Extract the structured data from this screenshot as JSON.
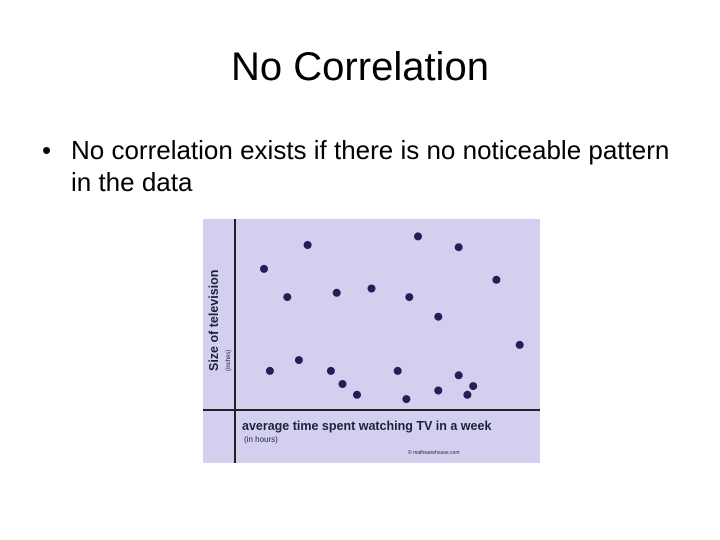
{
  "slide": {
    "title": "No Correlation",
    "bullet": "No correlation exists if there is no noticeable pattern in the data"
  },
  "chart_data": {
    "type": "scatter",
    "xlabel": "average time spent watching TV in a week",
    "xlabel_sub": "(in hours)",
    "ylabel": "Size of television",
    "ylabel_sub": "(inches)",
    "credit": "© mathwarehouse.com",
    "grid": false,
    "colors": {
      "background": "#d2d0ee",
      "point": "#2a1a55",
      "axis": "#222222"
    },
    "points": [
      {
        "x": 1.0,
        "y": 6.5
      },
      {
        "x": 1.2,
        "y": 1.8
      },
      {
        "x": 1.8,
        "y": 5.2
      },
      {
        "x": 2.2,
        "y": 2.3
      },
      {
        "x": 2.5,
        "y": 7.6
      },
      {
        "x": 3.3,
        "y": 1.8
      },
      {
        "x": 3.5,
        "y": 5.4
      },
      {
        "x": 3.7,
        "y": 1.2
      },
      {
        "x": 4.2,
        "y": 0.7
      },
      {
        "x": 4.7,
        "y": 5.6
      },
      {
        "x": 5.6,
        "y": 1.8
      },
      {
        "x": 6.0,
        "y": 5.2
      },
      {
        "x": 5.9,
        "y": 0.5
      },
      {
        "x": 6.3,
        "y": 8.0
      },
      {
        "x": 7.0,
        "y": 0.9
      },
      {
        "x": 7.0,
        "y": 4.3
      },
      {
        "x": 7.7,
        "y": 7.5
      },
      {
        "x": 7.7,
        "y": 1.6
      },
      {
        "x": 8.0,
        "y": 0.7
      },
      {
        "x": 8.2,
        "y": 1.1
      },
      {
        "x": 9.0,
        "y": 6.0
      },
      {
        "x": 9.8,
        "y": 3.0
      }
    ],
    "xlim": [
      0,
      10.5
    ],
    "ylim": [
      0,
      8.8
    ]
  }
}
